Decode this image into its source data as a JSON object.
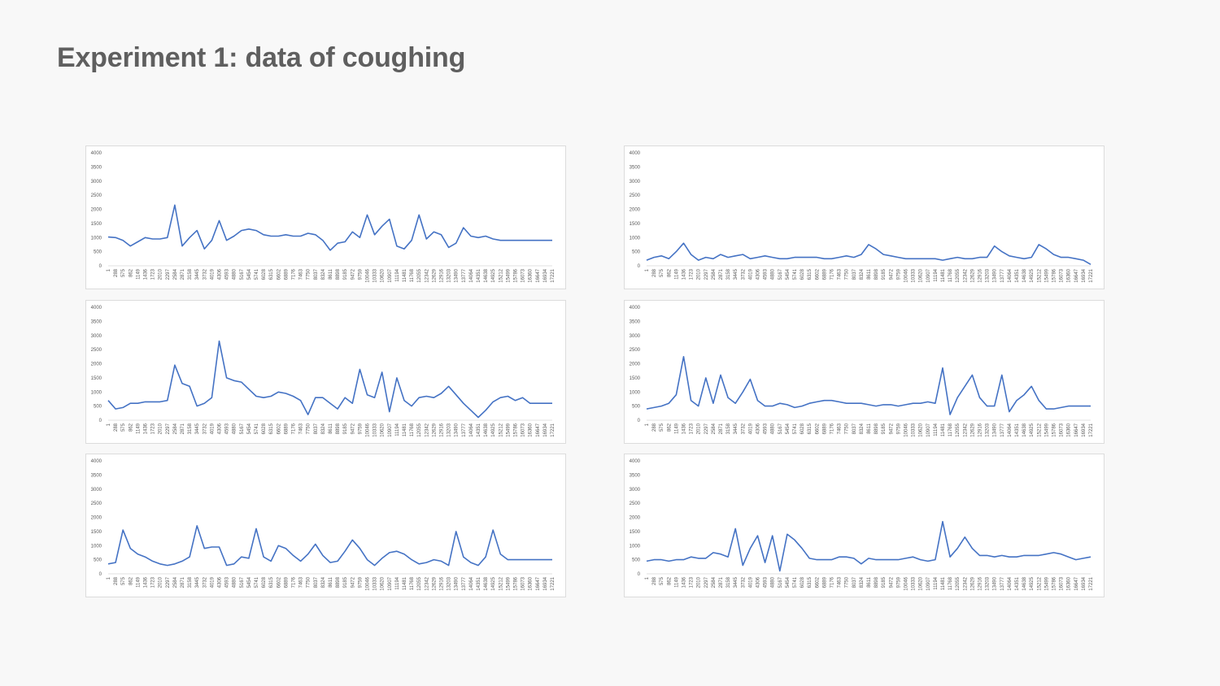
{
  "slide": {
    "title": "Experiment 1: data of coughing"
  },
  "chart_data": [
    {
      "type": "line",
      "ylim": [
        0,
        4000
      ],
      "y_ticks": [
        0,
        500,
        1000,
        1500,
        2000,
        2500,
        3000,
        3500,
        4000
      ],
      "grid": false,
      "legend": "none",
      "color": "#4472c4",
      "x_tick_labels": [
        "1",
        "288",
        "575",
        "862",
        "1149",
        "1436",
        "1723",
        "2010",
        "2297",
        "2584",
        "2871",
        "3158",
        "3445",
        "3732",
        "4019",
        "4306",
        "4593",
        "4880",
        "5167",
        "5454",
        "5741",
        "6028",
        "6315",
        "6602",
        "6889",
        "7176",
        "7463",
        "7750",
        "8037",
        "8324",
        "8611",
        "8898",
        "9185",
        "9472",
        "9759",
        "10046",
        "10333",
        "10620",
        "10907",
        "11194",
        "11481",
        "11768",
        "12055",
        "12342",
        "12629",
        "12916",
        "13203",
        "13490",
        "13777",
        "14064",
        "14351",
        "14638",
        "14925",
        "15212",
        "15499",
        "15786",
        "16073",
        "16360",
        "16647",
        "16934",
        "17221"
      ],
      "series": [
        {
          "values": [
            1020,
            1000,
            900,
            700,
            850,
            1000,
            950,
            950,
            1000,
            2150,
            700,
            1000,
            1250,
            600,
            900,
            1600,
            900,
            1050,
            1250,
            1300,
            1250,
            1100,
            1050,
            1050,
            1100,
            1050,
            1050,
            1150,
            1100,
            900,
            550,
            800,
            850,
            1200,
            1000,
            1800,
            1100,
            1400,
            1650,
            700,
            600,
            900,
            1800,
            950,
            1200,
            1100,
            650,
            800,
            1350,
            1050,
            1000,
            1050,
            950,
            900,
            900,
            900,
            900,
            900,
            900,
            900,
            900
          ]
        }
      ]
    },
    {
      "type": "line",
      "ylim": [
        0,
        4000
      ],
      "y_ticks": [
        0,
        500,
        1000,
        1500,
        2000,
        2500,
        3000,
        3500,
        4000
      ],
      "grid": false,
      "legend": "none",
      "color": "#4472c4",
      "x_tick_labels": [
        "1",
        "288",
        "575",
        "862",
        "1149",
        "1436",
        "1723",
        "2010",
        "2297",
        "2584",
        "2871",
        "3158",
        "3445",
        "3732",
        "4019",
        "4306",
        "4593",
        "4880",
        "5167",
        "5454",
        "5741",
        "6028",
        "6315",
        "6602",
        "6889",
        "7176",
        "7463",
        "7750",
        "8037",
        "8324",
        "8611",
        "8898",
        "9185",
        "9472",
        "9759",
        "10046",
        "10333",
        "10620",
        "10907",
        "11194",
        "11481",
        "11768",
        "12055",
        "12342",
        "12629",
        "12916",
        "13203",
        "13490",
        "13777",
        "14064",
        "14351",
        "14638",
        "14925",
        "15212",
        "15499",
        "15786",
        "16073",
        "16360",
        "16647",
        "16934",
        "17221"
      ],
      "series": [
        {
          "values": [
            200,
            300,
            350,
            250,
            500,
            800,
            400,
            200,
            300,
            250,
            400,
            300,
            350,
            400,
            250,
            300,
            350,
            300,
            250,
            250,
            300,
            300,
            300,
            300,
            250,
            250,
            300,
            350,
            300,
            400,
            750,
            600,
            400,
            350,
            300,
            250,
            250,
            250,
            250,
            250,
            200,
            250,
            300,
            250,
            250,
            300,
            300,
            700,
            500,
            350,
            300,
            250,
            300,
            750,
            600,
            400,
            300,
            300,
            250,
            200,
            50
          ]
        }
      ]
    },
    {
      "type": "line",
      "ylim": [
        0,
        4000
      ],
      "y_ticks": [
        0,
        500,
        1000,
        1500,
        2000,
        2500,
        3000,
        3500,
        4000
      ],
      "grid": false,
      "legend": "none",
      "color": "#4472c4",
      "x_tick_labels": [
        "1",
        "288",
        "575",
        "862",
        "1149",
        "1436",
        "1723",
        "2010",
        "2297",
        "2584",
        "2871",
        "3158",
        "3445",
        "3732",
        "4019",
        "4306",
        "4593",
        "4880",
        "5167",
        "5454",
        "5741",
        "6028",
        "6315",
        "6602",
        "6889",
        "7176",
        "7463",
        "7750",
        "8037",
        "8324",
        "8611",
        "8898",
        "9185",
        "9472",
        "9759",
        "10046",
        "10333",
        "10620",
        "10907",
        "11194",
        "11481",
        "11768",
        "12055",
        "12342",
        "12629",
        "12916",
        "13203",
        "13490",
        "13777",
        "14064",
        "14351",
        "14638",
        "14925",
        "15212",
        "15499",
        "15786",
        "16073",
        "16360",
        "16647",
        "16934",
        "17221"
      ],
      "series": [
        {
          "values": [
            700,
            400,
            450,
            600,
            600,
            650,
            650,
            650,
            700,
            1950,
            1300,
            1200,
            500,
            600,
            800,
            2800,
            1500,
            1400,
            1350,
            1100,
            850,
            800,
            850,
            1000,
            950,
            850,
            700,
            200,
            800,
            800,
            600,
            400,
            800,
            600,
            1800,
            900,
            800,
            1700,
            300,
            1500,
            700,
            500,
            800,
            850,
            800,
            950,
            1200,
            900,
            600,
            350,
            100,
            350,
            650,
            800,
            850,
            700,
            800,
            600,
            600,
            600,
            600
          ]
        }
      ]
    },
    {
      "type": "line",
      "ylim": [
        0,
        4000
      ],
      "y_ticks": [
        0,
        500,
        1000,
        1500,
        2000,
        2500,
        3000,
        3500,
        4000
      ],
      "grid": false,
      "legend": "none",
      "color": "#4472c4",
      "x_tick_labels": [
        "1",
        "288",
        "575",
        "862",
        "1149",
        "1436",
        "1723",
        "2010",
        "2297",
        "2584",
        "2871",
        "3158",
        "3445",
        "3732",
        "4019",
        "4306",
        "4593",
        "4880",
        "5167",
        "5454",
        "5741",
        "6028",
        "6315",
        "6602",
        "6889",
        "7176",
        "7463",
        "7750",
        "8037",
        "8324",
        "8611",
        "8898",
        "9185",
        "9472",
        "9759",
        "10046",
        "10333",
        "10620",
        "10907",
        "11194",
        "11481",
        "11768",
        "12055",
        "12342",
        "12629",
        "12916",
        "13203",
        "13490",
        "13777",
        "14064",
        "14351",
        "14638",
        "14925",
        "15212",
        "15499",
        "15786",
        "16073",
        "16360",
        "16647",
        "16934",
        "17221"
      ],
      "series": [
        {
          "values": [
            400,
            450,
            500,
            600,
            900,
            2250,
            700,
            500,
            1500,
            600,
            1600,
            800,
            600,
            1000,
            1450,
            700,
            500,
            500,
            600,
            550,
            450,
            500,
            600,
            650,
            700,
            700,
            650,
            600,
            600,
            600,
            550,
            500,
            550,
            550,
            500,
            550,
            600,
            600,
            650,
            600,
            1850,
            200,
            800,
            1200,
            1600,
            800,
            500,
            500,
            1600,
            300,
            700,
            900,
            1200,
            700,
            400,
            400,
            450,
            500,
            500,
            500,
            500
          ]
        }
      ]
    },
    {
      "type": "line",
      "ylim": [
        0,
        4000
      ],
      "y_ticks": [
        0,
        500,
        1000,
        1500,
        2000,
        2500,
        3000,
        3500,
        4000
      ],
      "grid": false,
      "legend": "none",
      "color": "#4472c4",
      "x_tick_labels": [
        "1",
        "288",
        "575",
        "862",
        "1149",
        "1436",
        "1723",
        "2010",
        "2297",
        "2584",
        "2871",
        "3158",
        "3445",
        "3732",
        "4019",
        "4306",
        "4593",
        "4880",
        "5167",
        "5454",
        "5741",
        "6028",
        "6315",
        "6602",
        "6889",
        "7176",
        "7463",
        "7750",
        "8037",
        "8324",
        "8611",
        "8898",
        "9185",
        "9472",
        "9759",
        "10046",
        "10333",
        "10620",
        "10907",
        "11194",
        "11481",
        "11768",
        "12055",
        "12342",
        "12629",
        "12916",
        "13203",
        "13490",
        "13777",
        "14064",
        "14351",
        "14638",
        "14925",
        "15212",
        "15499",
        "15786",
        "16073",
        "16360",
        "16647",
        "16934",
        "17221"
      ],
      "series": [
        {
          "values": [
            350,
            400,
            1550,
            900,
            700,
            600,
            450,
            350,
            300,
            350,
            450,
            600,
            1700,
            900,
            950,
            950,
            300,
            350,
            600,
            550,
            1600,
            600,
            450,
            1000,
            900,
            650,
            450,
            700,
            1050,
            650,
            400,
            450,
            800,
            1200,
            900,
            500,
            300,
            550,
            750,
            800,
            700,
            500,
            350,
            400,
            500,
            450,
            300,
            1500,
            600,
            400,
            300,
            600,
            1550,
            700,
            500,
            500,
            500,
            500,
            500,
            500,
            500
          ]
        }
      ]
    },
    {
      "type": "line",
      "ylim": [
        0,
        4000
      ],
      "y_ticks": [
        0,
        500,
        1000,
        1500,
        2000,
        2500,
        3000,
        3500,
        4000
      ],
      "grid": false,
      "legend": "none",
      "color": "#4472c4",
      "x_tick_labels": [
        "1",
        "288",
        "575",
        "862",
        "1149",
        "1436",
        "1723",
        "2010",
        "2297",
        "2584",
        "2871",
        "3158",
        "3445",
        "3732",
        "4019",
        "4306",
        "4593",
        "4880",
        "5167",
        "5454",
        "5741",
        "6028",
        "6315",
        "6602",
        "6889",
        "7176",
        "7463",
        "7750",
        "8037",
        "8324",
        "8611",
        "8898",
        "9185",
        "9472",
        "9759",
        "10046",
        "10333",
        "10620",
        "10907",
        "11194",
        "11481",
        "11768",
        "12055",
        "12342",
        "12629",
        "12916",
        "13203",
        "13490",
        "13777",
        "14064",
        "14351",
        "14638",
        "14925",
        "15212",
        "15499",
        "15786",
        "16073",
        "16360",
        "16647",
        "16934",
        "17221"
      ],
      "series": [
        {
          "values": [
            450,
            500,
            500,
            450,
            500,
            500,
            600,
            550,
            550,
            750,
            700,
            600,
            1600,
            300,
            900,
            1350,
            400,
            1350,
            100,
            1400,
            1200,
            900,
            550,
            500,
            500,
            500,
            600,
            600,
            550,
            350,
            550,
            500,
            500,
            500,
            500,
            550,
            600,
            500,
            450,
            500,
            1850,
            600,
            900,
            1300,
            900,
            650,
            650,
            600,
            650,
            600,
            600,
            650,
            650,
            650,
            700,
            750,
            700,
            600,
            500,
            550,
            600
          ]
        }
      ]
    }
  ]
}
